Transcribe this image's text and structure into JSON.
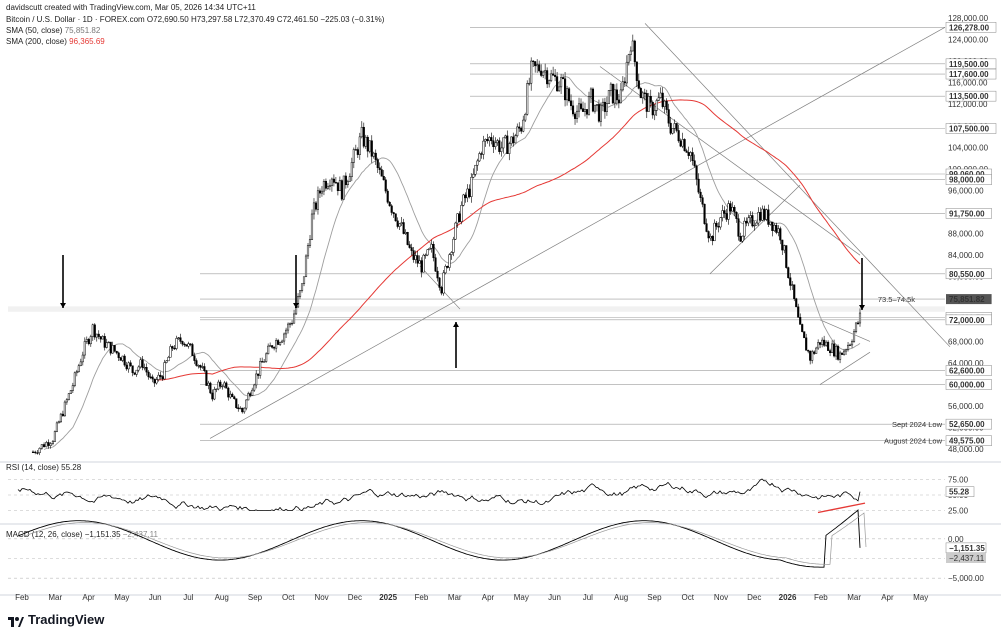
{
  "header": {
    "created_by": "davidscutt created with TradingView.com, Mar 05, 2026 14:34 UTC+11",
    "symbol_line": "Bitcoin / U.S. Dollar · 1D · FOREX.com  O72,690.50 H73,297.58 L72,370.49 C72,461.50 −225.03 (−0.31%)",
    "sma50_line": "SMA (50, close)",
    "sma50_value": "75,851.82",
    "sma200_line": "SMA (200, close)",
    "sma200_value": "96,365.69",
    "rsi_line": "RSI (14, close)",
    "rsi_value": "55.28",
    "macd_line": "MACD (12, 26, close)",
    "macd_value": "−1,151.35",
    "macd_value2": "−2,437.11"
  },
  "logo": {
    "text": "TradingView"
  },
  "colors": {
    "candle": "#000000",
    "sma50": "#9e9e9e",
    "sma200": "#e53935",
    "trendline": "#7f7f7f",
    "level": "#9e9e9e",
    "rsi_trend": "#e53935"
  },
  "chart_data": [
    {
      "type": "candlestick",
      "title": "Bitcoin / U.S. Dollar · 1D · FOREX.com",
      "x_labels": [
        "Feb",
        "Mar",
        "Apr",
        "May",
        "Jun",
        "Jul",
        "Aug",
        "Sep",
        "Oct",
        "Nov",
        "Dec",
        "2025",
        "Feb",
        "Mar",
        "Apr",
        "May",
        "Jun",
        "Jul",
        "Aug",
        "Sep",
        "Oct",
        "Nov",
        "Dec",
        "2026",
        "Feb",
        "Mar",
        "Apr",
        "May"
      ],
      "y_ticks": [
        48000,
        52000,
        56000,
        60000,
        64000,
        68000,
        72000,
        76000,
        80000,
        84000,
        88000,
        92000,
        96000,
        100000,
        104000,
        108000,
        112000,
        116000,
        120000,
        124000,
        128000
      ],
      "y_tick_labels": [
        "48,000.00",
        "52,000.00",
        "56,000.00",
        "60,000.00",
        "64,000.00",
        "68,000.00",
        "72,000.00",
        "76,000.00",
        "80,000.00",
        "84,000.00",
        "88,000.00",
        "92,000.00",
        "96,000.00",
        "100,000.00",
        "104,000.00",
        "108,000.00",
        "112,000.00",
        "116,000.00",
        "120,000.00",
        "124,000.00",
        "128,000.00"
      ],
      "ylim": [
        46000,
        128000
      ],
      "price_path": [
        [
          0,
          47500
        ],
        [
          2,
          50000
        ],
        [
          3,
          55000
        ],
        [
          4,
          60000
        ],
        [
          5,
          66000
        ],
        [
          6,
          70500
        ],
        [
          7,
          68000
        ],
        [
          8,
          66500
        ],
        [
          9,
          65000
        ],
        [
          10,
          62500
        ],
        [
          11,
          64000
        ],
        [
          12,
          60000
        ],
        [
          13,
          62000
        ],
        [
          14,
          67000
        ],
        [
          15,
          68500
        ],
        [
          16,
          66000
        ],
        [
          17,
          62500
        ],
        [
          18,
          58000
        ],
        [
          19,
          60500
        ],
        [
          20,
          57000
        ],
        [
          21,
          55000
        ],
        [
          22,
          60000
        ],
        [
          23,
          64000
        ],
        [
          24,
          67500
        ],
        [
          25,
          69000
        ],
        [
          26,
          72000
        ],
        [
          27,
          78000
        ],
        [
          28,
          91000
        ],
        [
          29,
          97000
        ],
        [
          30,
          99000
        ],
        [
          31,
          96000
        ],
        [
          32,
          101000
        ],
        [
          33,
          106000
        ],
        [
          34,
          103000
        ],
        [
          35,
          98000
        ],
        [
          36,
          93000
        ],
        [
          37,
          89000
        ],
        [
          38,
          84000
        ],
        [
          39,
          82000
        ],
        [
          40,
          85000
        ],
        [
          41,
          78000
        ],
        [
          42,
          86000
        ],
        [
          43,
          93000
        ],
        [
          44,
          97000
        ],
        [
          45,
          104000
        ],
        [
          46,
          106000
        ],
        [
          47,
          104000
        ],
        [
          48,
          105000
        ],
        [
          49,
          108000
        ],
        [
          50,
          118000
        ],
        [
          51,
          119000
        ],
        [
          52,
          117000
        ],
        [
          53,
          116000
        ],
        [
          54,
          112000
        ],
        [
          55,
          110000
        ],
        [
          56,
          113000
        ],
        [
          57,
          110000
        ],
        [
          58,
          114000
        ],
        [
          59,
          113000
        ],
        [
          60,
          124000
        ],
        [
          61,
          114000
        ],
        [
          62,
          111000
        ],
        [
          63,
          113000
        ],
        [
          64,
          108000
        ],
        [
          65,
          106000
        ],
        [
          66,
          103000
        ],
        [
          67,
          94000
        ],
        [
          68,
          87000
        ],
        [
          69,
          91000
        ],
        [
          70,
          93000
        ],
        [
          71,
          88000
        ],
        [
          72,
          90000
        ],
        [
          73,
          92000
        ],
        [
          74,
          90500
        ],
        [
          75,
          88000
        ],
        [
          76,
          79000
        ],
        [
          77,
          70000
        ],
        [
          78,
          65000
        ],
        [
          79,
          68000
        ],
        [
          80,
          67000
        ],
        [
          81,
          65500
        ],
        [
          82,
          68000
        ],
        [
          83,
          72461.5
        ]
      ],
      "sma50": {
        "name": "SMA (50, close)",
        "last": 75851.82
      },
      "sma200": {
        "name": "SMA (200, close)",
        "last": 96365.69
      },
      "horizontal_levels": [
        126278,
        119500,
        117600,
        113500,
        107500,
        99060,
        98000,
        91750,
        80550,
        75851.82,
        72461.5,
        72000,
        62600,
        60000,
        52650,
        49575
      ],
      "level_labels": [
        "126,278.00",
        "119,500.00",
        "117,600.00",
        "113,500.00",
        "107,500.00",
        "99,060.00",
        "98,000.00",
        "91,750.00",
        "80,550.00",
        "75,851.82",
        "72,461.50",
        "72,000.00",
        "62,600.00",
        "60,000.00",
        "52,650.00",
        "49,575.00"
      ],
      "annotations": [
        "73.5–74.5k",
        "Sept 2024 Low",
        "August 2024 Low"
      ]
    },
    {
      "type": "line",
      "title": "RSI (14, close)",
      "y_ticks": [
        25,
        50,
        75
      ],
      "y_tick_labels": [
        "25.00",
        "50.00",
        "75.00"
      ],
      "ylim": [
        10,
        90
      ],
      "levels": [
        70,
        30
      ],
      "last": 55.28,
      "last_label": "55.28"
    },
    {
      "type": "line",
      "title": "MACD (12, 26, close)",
      "y_ticks": [
        0,
        -2500,
        -5000
      ],
      "y_tick_labels": [
        "0.00",
        "−2,500.00",
        "−5,000.00"
      ],
      "ylim": [
        -6500,
        1500
      ],
      "last": -1151.35,
      "last_label": "−1,151.35",
      "signal_last": -2437.11,
      "signal_last_label": "−2,437.11"
    }
  ]
}
